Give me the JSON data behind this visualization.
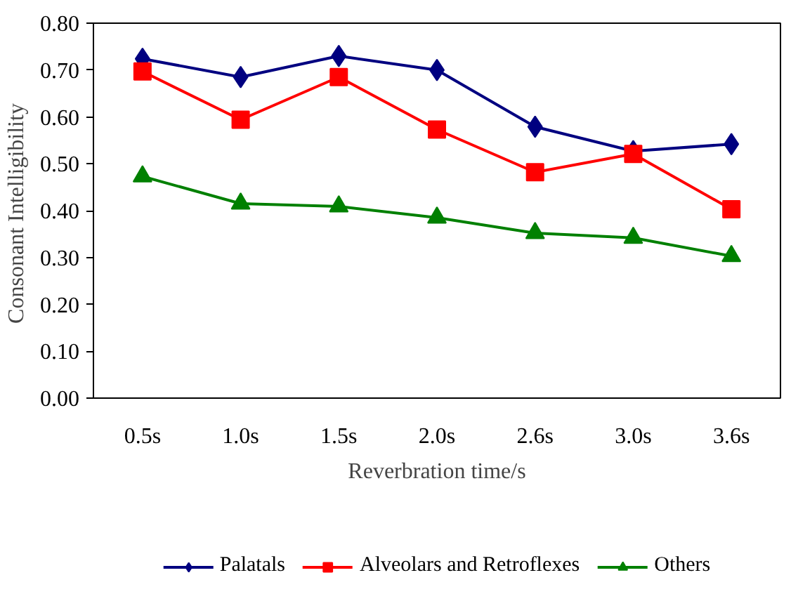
{
  "chart_data": {
    "type": "line",
    "xlabel": "Reverbration time/s",
    "ylabel": "Consonant  Intelligibility",
    "categories": [
      "0.5s",
      "1.0s",
      "1.5s",
      "2.0s",
      "2.6s",
      "3.0s",
      "3.6s"
    ],
    "ylim": [
      0,
      0.8
    ],
    "yticks": [
      {
        "value": 0,
        "label": "0.00"
      },
      {
        "value": 0.1,
        "label": "0.10"
      },
      {
        "value": 0.2,
        "label": "0.20"
      },
      {
        "value": 0.3,
        "label": "0.30"
      },
      {
        "value": 0.4,
        "label": "0.40"
      },
      {
        "value": 0.5,
        "label": "0.50"
      },
      {
        "value": 0.6,
        "label": "0.60"
      },
      {
        "value": 0.7,
        "label": "0.70"
      },
      {
        "value": 0.8,
        "label": "0.80"
      }
    ],
    "grid": false,
    "legend": "bottom",
    "line_style": "solid",
    "series": [
      {
        "name": "Palatals",
        "color": "#000080",
        "marker": "diamond",
        "values": [
          0.724,
          0.685,
          0.73,
          0.7,
          0.579,
          0.527,
          0.542
        ]
      },
      {
        "name": "Alveolars and Retroflexes",
        "color": "#ff0000",
        "marker": "square",
        "values": [
          0.697,
          0.594,
          0.685,
          0.573,
          0.482,
          0.521,
          0.403
        ]
      },
      {
        "name": "Others",
        "color": "#008000",
        "marker": "triangle",
        "values": [
          0.473,
          0.415,
          0.409,
          0.385,
          0.352,
          0.342,
          0.303
        ]
      }
    ]
  }
}
